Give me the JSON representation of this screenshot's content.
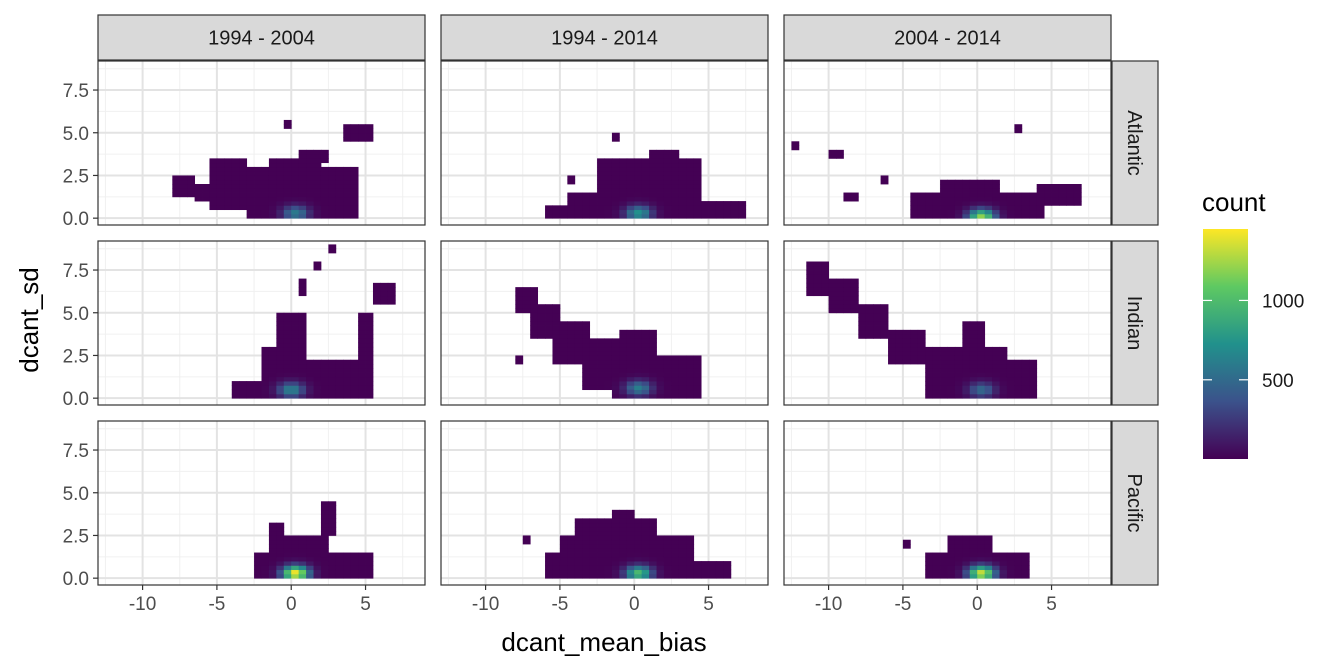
{
  "chart_data": {
    "type": "heatmap",
    "subtype": "faceted 2D bin count (facet_grid)",
    "xlabel": "dcant_mean_bias",
    "ylabel": "dcant_sd",
    "xlim": [
      -13.0,
      9.0
    ],
    "ylim": [
      -0.4,
      9.2
    ],
    "x_ticks": [
      -10,
      -5,
      0,
      5
    ],
    "x_tick_labels": [
      "-10",
      "-5",
      "0",
      "5"
    ],
    "y_ticks": [
      0,
      2.5,
      5,
      7.5
    ],
    "y_tick_labels": [
      "0.0",
      "2.5",
      "5.0",
      "7.5"
    ],
    "grid": true,
    "theme": "bw",
    "column_facets": [
      "1994 - 2004",
      "1994 - 2014",
      "2004 - 2014"
    ],
    "row_facets": [
      "Atlantic",
      "Indian",
      "Pacific"
    ],
    "fill_scale": {
      "name": "count",
      "palette": "viridis",
      "stops": [
        "#440154",
        "#3b528b",
        "#21918c",
        "#5ec962",
        "#fde725"
      ],
      "range": [
        1,
        1450
      ],
      "breaks": [
        500,
        1000
      ],
      "break_labels": [
        "500",
        "1000"
      ],
      "legend_position": "right"
    },
    "bin_size": {
      "x": 0.5,
      "y": 0.25
    },
    "panels": [
      {
        "row": "Atlantic",
        "col": "1994 - 2004",
        "peak": [
          0.3,
          0.3
        ],
        "peak_count": 600,
        "regions": [
          {
            "x": [
              -8.0,
              -6.5
            ],
            "y": [
              1.3,
              2.3
            ]
          },
          {
            "x": [
              -6.5,
              -5.5
            ],
            "y": [
              1.0,
              2.0
            ]
          },
          {
            "x": [
              -5.5,
              -3.0
            ],
            "y": [
              0.6,
              3.5
            ]
          },
          {
            "x": [
              -3.0,
              -1.5
            ],
            "y": [
              0.1,
              2.8
            ]
          },
          {
            "x": [
              -1.5,
              2.0
            ],
            "y": [
              0.0,
              3.5
            ]
          },
          {
            "x": [
              2.0,
              4.5
            ],
            "y": [
              0.0,
              2.8
            ]
          },
          {
            "x": [
              0.5,
              2.5
            ],
            "y": [
              3.3,
              3.8
            ]
          },
          {
            "x": [
              3.5,
              5.5
            ],
            "y": [
              4.5,
              5.3
            ]
          },
          {
            "x": [
              -0.5,
              0.0
            ],
            "y": [
              5.3,
              5.6
            ]
          }
        ]
      },
      {
        "row": "Atlantic",
        "col": "1994 - 2014",
        "peak": [
          0.3,
          0.3
        ],
        "peak_count": 750,
        "regions": [
          {
            "x": [
              -6.0,
              -4.5
            ],
            "y": [
              0.1,
              0.6
            ]
          },
          {
            "x": [
              -4.5,
              -2.0
            ],
            "y": [
              0.0,
              1.5
            ]
          },
          {
            "x": [
              -2.5,
              4.5
            ],
            "y": [
              0.0,
              3.5
            ]
          },
          {
            "x": [
              4.5,
              7.5
            ],
            "y": [
              0.0,
              1.0
            ]
          },
          {
            "x": [
              1.0,
              3.0
            ],
            "y": [
              3.2,
              3.8
            ]
          },
          {
            "x": [
              -1.5,
              -1.0
            ],
            "y": [
              4.5,
              4.8
            ]
          },
          {
            "x": [
              -4.5,
              -4.0
            ],
            "y": [
              2.0,
              2.3
            ]
          }
        ]
      },
      {
        "row": "Atlantic",
        "col": "2004 - 2014",
        "peak": [
          0.3,
          0.1
        ],
        "peak_count": 1200,
        "regions": [
          {
            "x": [
              -4.5,
              4.5
            ],
            "y": [
              0.0,
              1.5
            ]
          },
          {
            "x": [
              -2.5,
              1.5
            ],
            "y": [
              1.2,
              2.2
            ]
          },
          {
            "x": [
              4.0,
              7.0
            ],
            "y": [
              0.8,
              2.0
            ]
          },
          {
            "x": [
              -9.0,
              -8.0
            ],
            "y": [
              1.0,
              1.3
            ]
          },
          {
            "x": [
              -12.5,
              -12.0
            ],
            "y": [
              4.0,
              4.5
            ]
          },
          {
            "x": [
              -10.0,
              -9.0
            ],
            "y": [
              3.5,
              4.0
            ]
          },
          {
            "x": [
              -6.5,
              -6.0
            ],
            "y": [
              2.0,
              2.5
            ]
          },
          {
            "x": [
              2.5,
              3.0
            ],
            "y": [
              5.2,
              5.5
            ]
          }
        ]
      },
      {
        "row": "Indian",
        "col": "1994 - 2004",
        "peak": [
          0.0,
          0.5
        ],
        "peak_count": 650,
        "regions": [
          {
            "x": [
              -4.0,
              -2.0
            ],
            "y": [
              0.2,
              1.0
            ]
          },
          {
            "x": [
              -2.0,
              1.0
            ],
            "y": [
              0.0,
              2.8
            ]
          },
          {
            "x": [
              -1.0,
              1.0
            ],
            "y": [
              2.5,
              5.0
            ]
          },
          {
            "x": [
              1.0,
              5.5
            ],
            "y": [
              0.0,
              2.2
            ]
          },
          {
            "x": [
              4.5,
              5.5
            ],
            "y": [
              2.0,
              5.0
            ]
          },
          {
            "x": [
              5.5,
              7.0
            ],
            "y": [
              5.5,
              6.7
            ]
          },
          {
            "x": [
              1.5,
              2.0
            ],
            "y": [
              7.5,
              7.8
            ]
          },
          {
            "x": [
              2.5,
              3.0
            ],
            "y": [
              8.5,
              8.8
            ]
          },
          {
            "x": [
              0.5,
              1.0
            ],
            "y": [
              6.0,
              7.0
            ]
          }
        ]
      },
      {
        "row": "Indian",
        "col": "1994 - 2014",
        "peak": [
          0.3,
          0.6
        ],
        "peak_count": 620,
        "regions": [
          {
            "x": [
              -8.0,
              -6.5
            ],
            "y": [
              5.0,
              6.5
            ]
          },
          {
            "x": [
              -7.0,
              -5.0
            ],
            "y": [
              3.5,
              5.5
            ]
          },
          {
            "x": [
              -5.5,
              -3.0
            ],
            "y": [
              2.0,
              4.5
            ]
          },
          {
            "x": [
              -3.5,
              0.0
            ],
            "y": [
              0.5,
              3.5
            ]
          },
          {
            "x": [
              -1.5,
              4.5
            ],
            "y": [
              0.0,
              2.5
            ]
          },
          {
            "x": [
              -1.0,
              1.5
            ],
            "y": [
              2.5,
              4.0
            ]
          },
          {
            "x": [
              -8.0,
              -7.5
            ],
            "y": [
              2.0,
              2.3
            ]
          }
        ]
      },
      {
        "row": "Indian",
        "col": "2004 - 2014",
        "peak": [
          0.3,
          0.5
        ],
        "peak_count": 500,
        "regions": [
          {
            "x": [
              -11.5,
              -10.0
            ],
            "y": [
              6.0,
              7.8
            ]
          },
          {
            "x": [
              -10.0,
              -8.0
            ],
            "y": [
              5.0,
              7.0
            ]
          },
          {
            "x": [
              -8.0,
              -6.0
            ],
            "y": [
              3.5,
              5.5
            ]
          },
          {
            "x": [
              -6.0,
              -3.5
            ],
            "y": [
              2.0,
              4.0
            ]
          },
          {
            "x": [
              -3.5,
              2.0
            ],
            "y": [
              0.0,
              3.0
            ]
          },
          {
            "x": [
              2.0,
              4.0
            ],
            "y": [
              0.0,
              2.2
            ]
          },
          {
            "x": [
              -1.0,
              0.5
            ],
            "y": [
              3.0,
              4.5
            ]
          }
        ]
      },
      {
        "row": "Pacific",
        "col": "1994 - 2004",
        "peak": [
          0.3,
          0.3
        ],
        "peak_count": 1450,
        "regions": [
          {
            "x": [
              -2.5,
              5.5
            ],
            "y": [
              0.0,
              1.3
            ]
          },
          {
            "x": [
              -1.5,
              2.5
            ],
            "y": [
              1.0,
              2.5
            ]
          },
          {
            "x": [
              -1.5,
              -0.5
            ],
            "y": [
              2.5,
              3.2
            ]
          },
          {
            "x": [
              2.0,
              3.0
            ],
            "y": [
              2.5,
              4.5
            ]
          }
        ]
      },
      {
        "row": "Pacific",
        "col": "1994 - 2014",
        "peak": [
          0.3,
          0.3
        ],
        "peak_count": 1000,
        "regions": [
          {
            "x": [
              -6.0,
              6.5
            ],
            "y": [
              0.0,
              1.0
            ]
          },
          {
            "x": [
              -5.0,
              4.0
            ],
            "y": [
              0.8,
              2.5
            ]
          },
          {
            "x": [
              -4.0,
              1.5
            ],
            "y": [
              2.3,
              3.5
            ]
          },
          {
            "x": [
              -1.5,
              0.0
            ],
            "y": [
              3.5,
              3.8
            ]
          },
          {
            "x": [
              -7.5,
              -7.0
            ],
            "y": [
              2.0,
              2.3
            ]
          },
          {
            "x": [
              -6.0,
              -5.0
            ],
            "y": [
              1.0,
              1.3
            ]
          }
        ]
      },
      {
        "row": "Pacific",
        "col": "2004 - 2014",
        "peak": [
          0.3,
          0.3
        ],
        "peak_count": 1350,
        "regions": [
          {
            "x": [
              -3.5,
              3.5
            ],
            "y": [
              0.0,
              1.3
            ]
          },
          {
            "x": [
              -2.0,
              1.0
            ],
            "y": [
              1.3,
              2.3
            ]
          },
          {
            "x": [
              -5.0,
              -4.5
            ],
            "y": [
              1.8,
              2.1
            ]
          }
        ]
      }
    ]
  }
}
